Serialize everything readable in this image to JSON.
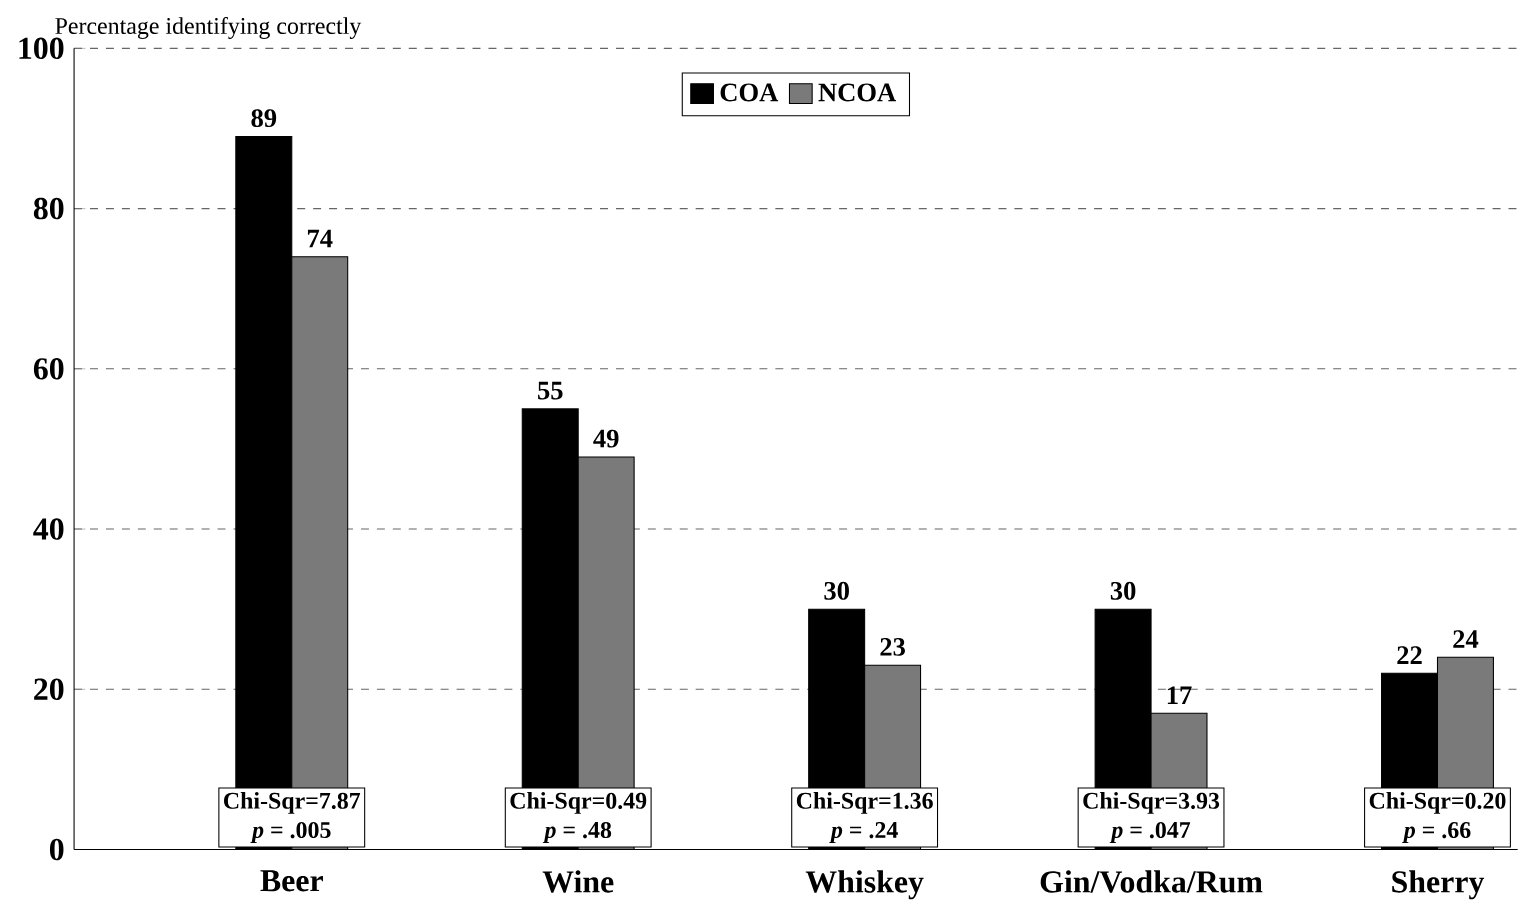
{
  "chart_data": {
    "type": "bar",
    "ylabel": "Percentage identifying correctly",
    "categories": [
      "Beer",
      "Wine",
      "Whiskey",
      "Gin/Vodka/Rum",
      "Sherry"
    ],
    "series": [
      {
        "name": "COA",
        "color": "#000000",
        "values": [
          89,
          55,
          30,
          30,
          22
        ]
      },
      {
        "name": "NCOA",
        "color": "#7a7a7a",
        "values": [
          74,
          49,
          23,
          17,
          24
        ]
      }
    ],
    "ylim": [
      0,
      100
    ],
    "yticks": [
      0,
      20,
      40,
      60,
      80,
      100
    ],
    "grid": "y",
    "legend": "top",
    "data_labels": true,
    "annotations": [
      {
        "text": "Chi-Sqr=7.87",
        "x": "Beer",
        "y": 6
      },
      {
        "text": "*p* = .005",
        "x": "Beer",
        "y": 2
      },
      {
        "text": "Chi-Sqr=0.49",
        "x": "Wine",
        "y": 6
      },
      {
        "text": "*p* = .48",
        "x": "Wine",
        "y": 2
      },
      {
        "text": "Chi-Sqr=1.36",
        "x": "Whiskey",
        "y": 6
      },
      {
        "text": "*p* = .24",
        "x": "Whiskey",
        "y": 2
      },
      {
        "text": "Chi-Sqr=3.93",
        "x": "Gin/Vodka/Rum",
        "y": 6
      },
      {
        "text": "*p* = .047",
        "x": "Gin/Vodka/Rum",
        "y": 2
      },
      {
        "text": "Chi-Sqr=0.20",
        "x": "Sherry",
        "y": 6
      },
      {
        "text": "*p* = .66",
        "x": "Sherry",
        "y": 2
      }
    ]
  }
}
